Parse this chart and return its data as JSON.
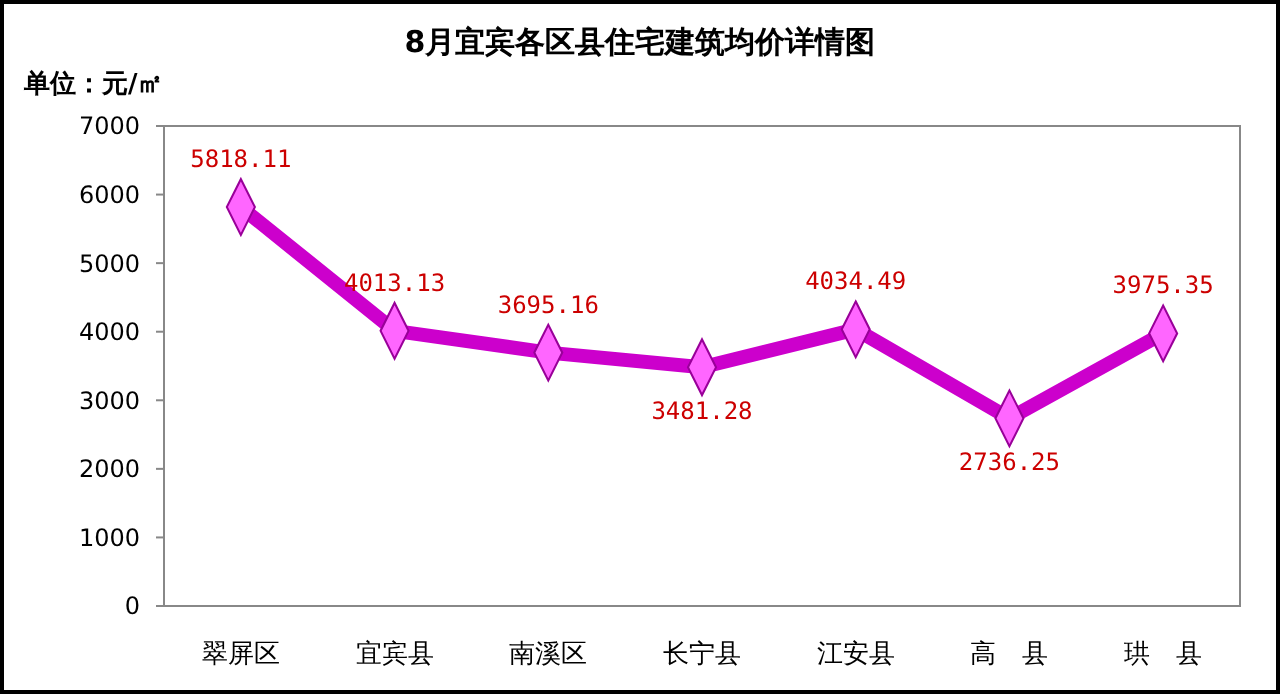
{
  "chart_data": {
    "type": "line",
    "title": "8月宜宾各区县住宅建筑均价详情图",
    "ylabel": "单位：元/㎡",
    "categories": [
      "翠屏区",
      "宜宾县",
      "南溪区",
      "长宁县",
      "江安县",
      "高　县",
      "珙　县"
    ],
    "series": [
      {
        "color": "#cc00cc",
        "values": [
          5818.11,
          4013.13,
          3695.16,
          3481.28,
          4034.49,
          2736.25,
          3975.35
        ]
      }
    ],
    "ylim": [
      0,
      7000
    ],
    "yticks": [
      0,
      1000,
      2000,
      3000,
      4000,
      5000,
      6000,
      7000
    ],
    "grid": false,
    "marker": "diamond",
    "line_style": "solid",
    "data_labels": true
  }
}
